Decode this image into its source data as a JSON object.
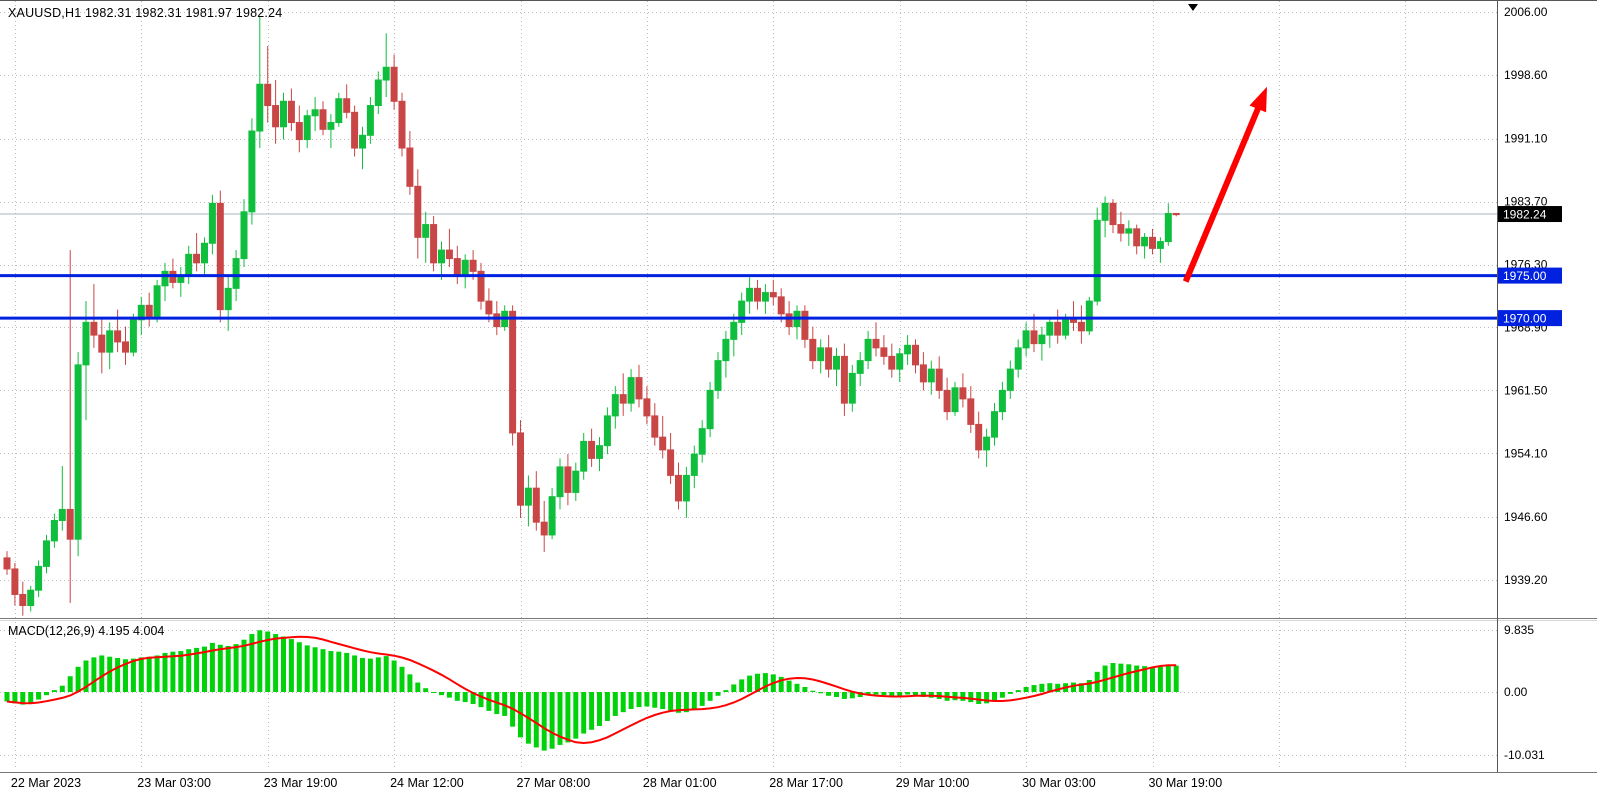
{
  "header": {
    "title": "XAUUSD,H1 1982.31 1982.31 1981.97 1982.24"
  },
  "colors": {
    "background": "#FFFFFF",
    "grid": "#BDBDBD",
    "axis_text": "#000000",
    "bull": "#0FBE3C",
    "bear": "#C84646",
    "macd_hist": "#00D20A",
    "macd_signal": "#FF0000",
    "hline": "#0022E0",
    "hline_tag_bg": "#0022E0",
    "current_tag_bg": "#000000",
    "current_line": "#A8B4C0",
    "arrow": "#FF0000",
    "separator": "#777777"
  },
  "chart_data": {
    "type": "candlestick",
    "symbol": "XAUUSD",
    "timeframe": "H1",
    "ohlc_display": {
      "open": "1982.31",
      "high": "1982.31",
      "low": "1981.97",
      "close": "1982.24"
    },
    "price_axis": {
      "ticks": [
        2006.0,
        1998.6,
        1991.1,
        1983.7,
        1976.3,
        1968.9,
        1961.5,
        1954.1,
        1946.6,
        1939.2
      ],
      "tick_labels": [
        "2006.00",
        "1998.60",
        "1991.10",
        "1983.70",
        "1976.30",
        "1968.90",
        "1961.50",
        "1954.10",
        "1946.60",
        "1939.20"
      ]
    },
    "time_axis": {
      "labels": [
        {
          "text": "22 Mar 2023",
          "index": 1
        },
        {
          "text": "23 Mar 03:00",
          "index": 17
        },
        {
          "text": "23 Mar 19:00",
          "index": 33
        },
        {
          "text": "24 Mar 12:00",
          "index": 49
        },
        {
          "text": "27 Mar 08:00",
          "index": 65
        },
        {
          "text": "28 Mar 01:00",
          "index": 81
        },
        {
          "text": "28 Mar 17:00",
          "index": 97
        },
        {
          "text": "29 Mar 10:00",
          "index": 113
        },
        {
          "text": "30 Mar 03:00",
          "index": 129
        },
        {
          "text": "30 Mar 19:00",
          "index": 145
        }
      ],
      "grid_extra_indices": [
        161,
        177
      ]
    },
    "horizontal_lines": [
      {
        "price": 1975.0,
        "label": "1975.00"
      },
      {
        "price": 1970.0,
        "label": "1970.00"
      }
    ],
    "current_price": {
      "value": 1982.24,
      "label": "1982.24"
    },
    "candles": [
      [
        1941.8,
        1942.6,
        1939.8,
        1940.5
      ],
      [
        1940.5,
        1941.2,
        1936.2,
        1937.5
      ],
      [
        1937.5,
        1939.0,
        1935.0,
        1936.2
      ],
      [
        1936.2,
        1938.5,
        1935.5,
        1938.0
      ],
      [
        1938.0,
        1941.5,
        1937.2,
        1940.8
      ],
      [
        1940.8,
        1944.5,
        1940.0,
        1943.8
      ],
      [
        1943.8,
        1947.0,
        1943.0,
        1946.2
      ],
      [
        1946.2,
        1952.6,
        1945.0,
        1947.5
      ],
      [
        1947.5,
        1978.0,
        1936.5,
        1944.0
      ],
      [
        1944.0,
        1966.0,
        1942.0,
        1964.5
      ],
      [
        1964.5,
        1972.0,
        1958.0,
        1969.5
      ],
      [
        1969.5,
        1974.0,
        1966.5,
        1968.0
      ],
      [
        1968.0,
        1970.0,
        1963.5,
        1966.0
      ],
      [
        1966.0,
        1969.5,
        1964.0,
        1968.5
      ],
      [
        1968.5,
        1971.0,
        1966.0,
        1967.2
      ],
      [
        1967.2,
        1969.0,
        1964.5,
        1966.0
      ],
      [
        1966.0,
        1970.5,
        1965.5,
        1969.8
      ],
      [
        1969.8,
        1972.5,
        1968.0,
        1971.5
      ],
      [
        1971.5,
        1973.0,
        1969.0,
        1970.2
      ],
      [
        1970.2,
        1974.5,
        1969.5,
        1973.8
      ],
      [
        1973.8,
        1976.5,
        1972.0,
        1975.5
      ],
      [
        1975.5,
        1977.0,
        1973.5,
        1974.2
      ],
      [
        1974.2,
        1976.0,
        1972.5,
        1975.0
      ],
      [
        1975.0,
        1978.5,
        1974.0,
        1977.5
      ],
      [
        1977.5,
        1980.0,
        1975.5,
        1976.5
      ],
      [
        1976.5,
        1979.5,
        1975.0,
        1978.8
      ],
      [
        1978.8,
        1984.5,
        1977.5,
        1983.5
      ],
      [
        1983.5,
        1985.0,
        1969.5,
        1971.0
      ],
      [
        1971.0,
        1975.0,
        1968.5,
        1973.5
      ],
      [
        1973.5,
        1978.0,
        1972.0,
        1977.0
      ],
      [
        1977.0,
        1984.0,
        1976.0,
        1982.5
      ],
      [
        1982.5,
        1993.5,
        1981.0,
        1992.0
      ],
      [
        1992.0,
        2005.5,
        1990.0,
        1997.5
      ],
      [
        1997.5,
        2002.0,
        1993.0,
        1995.0
      ],
      [
        1995.0,
        1998.0,
        1990.5,
        1992.5
      ],
      [
        1992.5,
        1996.5,
        1991.0,
        1995.5
      ],
      [
        1995.5,
        1997.0,
        1992.0,
        1993.0
      ],
      [
        1993.0,
        1995.0,
        1989.5,
        1991.0
      ],
      [
        1991.0,
        1994.5,
        1990.0,
        1993.8
      ],
      [
        1993.8,
        1996.0,
        1992.0,
        1994.5
      ],
      [
        1994.5,
        1995.5,
        1991.5,
        1992.2
      ],
      [
        1992.2,
        1994.0,
        1990.0,
        1993.0
      ],
      [
        1993.0,
        1996.5,
        1992.5,
        1995.8
      ],
      [
        1995.8,
        1997.5,
        1993.5,
        1994.2
      ],
      [
        1994.2,
        1995.0,
        1989.0,
        1990.0
      ],
      [
        1990.0,
        1992.5,
        1987.5,
        1991.5
      ],
      [
        1991.5,
        1996.0,
        1990.5,
        1995.0
      ],
      [
        1995.0,
        1999.0,
        1994.0,
        1998.0
      ],
      [
        1998.0,
        2003.5,
        1996.0,
        1999.5
      ],
      [
        1999.5,
        2001.0,
        1994.5,
        1995.5
      ],
      [
        1995.5,
        1996.5,
        1989.0,
        1990.0
      ],
      [
        1990.0,
        1992.0,
        1984.5,
        1985.5
      ],
      [
        1985.5,
        1987.5,
        1977.0,
        1979.5
      ],
      [
        1979.5,
        1982.5,
        1976.5,
        1981.0
      ],
      [
        1981.0,
        1982.0,
        1975.5,
        1976.5
      ],
      [
        1976.5,
        1979.0,
        1974.5,
        1978.0
      ],
      [
        1978.0,
        1980.5,
        1976.0,
        1977.0
      ],
      [
        1977.0,
        1978.5,
        1974.0,
        1975.0
      ],
      [
        1975.0,
        1977.5,
        1973.5,
        1976.8
      ],
      [
        1976.8,
        1978.0,
        1974.5,
        1975.5
      ],
      [
        1975.5,
        1976.5,
        1971.0,
        1972.0
      ],
      [
        1972.0,
        1973.5,
        1969.5,
        1970.5
      ],
      [
        1970.5,
        1972.0,
        1968.0,
        1969.0
      ],
      [
        1969.0,
        1971.5,
        1968.5,
        1970.8
      ],
      [
        1970.8,
        1971.5,
        1955.0,
        1956.5
      ],
      [
        1956.5,
        1958.0,
        1946.5,
        1948.0
      ],
      [
        1948.0,
        1951.5,
        1945.5,
        1950.0
      ],
      [
        1950.0,
        1952.0,
        1945.0,
        1946.0
      ],
      [
        1946.0,
        1948.5,
        1942.5,
        1944.5
      ],
      [
        1944.5,
        1950.0,
        1944.0,
        1949.0
      ],
      [
        1949.0,
        1953.5,
        1947.5,
        1952.5
      ],
      [
        1952.5,
        1954.0,
        1948.0,
        1949.5
      ],
      [
        1949.5,
        1953.0,
        1948.5,
        1952.0
      ],
      [
        1952.0,
        1956.5,
        1951.0,
        1955.5
      ],
      [
        1955.5,
        1957.0,
        1952.5,
        1953.5
      ],
      [
        1953.5,
        1956.0,
        1952.0,
        1955.0
      ],
      [
        1955.0,
        1959.5,
        1954.0,
        1958.5
      ],
      [
        1958.5,
        1962.0,
        1957.0,
        1961.0
      ],
      [
        1961.0,
        1963.5,
        1958.5,
        1960.0
      ],
      [
        1960.0,
        1964.0,
        1959.0,
        1963.0
      ],
      [
        1963.0,
        1964.5,
        1959.5,
        1960.5
      ],
      [
        1960.5,
        1962.0,
        1957.5,
        1958.5
      ],
      [
        1958.5,
        1960.0,
        1955.0,
        1956.0
      ],
      [
        1956.0,
        1958.5,
        1953.5,
        1954.5
      ],
      [
        1954.5,
        1956.5,
        1950.5,
        1951.5
      ],
      [
        1951.5,
        1953.0,
        1947.5,
        1948.5
      ],
      [
        1948.5,
        1952.5,
        1946.5,
        1951.5
      ],
      [
        1951.5,
        1955.0,
        1950.0,
        1954.0
      ],
      [
        1954.0,
        1958.0,
        1953.0,
        1957.0
      ],
      [
        1957.0,
        1962.5,
        1956.0,
        1961.5
      ],
      [
        1961.5,
        1966.0,
        1960.5,
        1965.0
      ],
      [
        1965.0,
        1968.5,
        1963.0,
        1967.5
      ],
      [
        1967.5,
        1970.5,
        1965.5,
        1969.5
      ],
      [
        1969.5,
        1973.0,
        1968.0,
        1972.0
      ],
      [
        1972.0,
        1974.8,
        1970.5,
        1973.5
      ],
      [
        1973.5,
        1974.5,
        1971.0,
        1972.0
      ],
      [
        1972.0,
        1974.0,
        1970.5,
        1973.0
      ],
      [
        1973.0,
        1974.5,
        1971.5,
        1972.5
      ],
      [
        1972.5,
        1973.5,
        1969.5,
        1970.5
      ],
      [
        1970.5,
        1972.0,
        1968.0,
        1969.0
      ],
      [
        1969.0,
        1971.5,
        1967.5,
        1970.8
      ],
      [
        1970.8,
        1971.5,
        1966.5,
        1967.5
      ],
      [
        1967.5,
        1969.0,
        1964.0,
        1965.0
      ],
      [
        1965.0,
        1967.5,
        1963.5,
        1966.5
      ],
      [
        1966.5,
        1968.0,
        1963.0,
        1964.0
      ],
      [
        1964.0,
        1966.5,
        1962.0,
        1965.5
      ],
      [
        1965.5,
        1967.0,
        1958.5,
        1960.0
      ],
      [
        1960.0,
        1964.5,
        1959.0,
        1963.5
      ],
      [
        1963.5,
        1966.0,
        1962.0,
        1965.0
      ],
      [
        1965.0,
        1968.5,
        1964.0,
        1967.5
      ],
      [
        1967.5,
        1969.5,
        1965.5,
        1966.5
      ],
      [
        1966.5,
        1968.0,
        1964.5,
        1965.5
      ],
      [
        1965.5,
        1967.0,
        1963.0,
        1964.0
      ],
      [
        1964.0,
        1966.5,
        1962.5,
        1965.8
      ],
      [
        1965.8,
        1968.0,
        1964.5,
        1966.8
      ],
      [
        1966.8,
        1967.5,
        1963.5,
        1964.5
      ],
      [
        1964.5,
        1966.0,
        1961.5,
        1962.5
      ],
      [
        1962.5,
        1965.0,
        1961.0,
        1964.0
      ],
      [
        1964.0,
        1965.5,
        1960.5,
        1961.5
      ],
      [
        1961.5,
        1963.0,
        1958.0,
        1959.0
      ],
      [
        1959.0,
        1962.5,
        1958.5,
        1961.8
      ],
      [
        1961.8,
        1963.5,
        1959.5,
        1960.5
      ],
      [
        1960.5,
        1962.0,
        1956.5,
        1957.5
      ],
      [
        1957.5,
        1959.0,
        1953.5,
        1954.5
      ],
      [
        1954.5,
        1957.0,
        1952.5,
        1956.0
      ],
      [
        1956.0,
        1960.0,
        1955.0,
        1959.0
      ],
      [
        1959.0,
        1962.5,
        1958.0,
        1961.5
      ],
      [
        1961.5,
        1965.0,
        1960.5,
        1964.0
      ],
      [
        1964.0,
        1967.5,
        1963.0,
        1966.5
      ],
      [
        1966.5,
        1969.5,
        1965.5,
        1968.5
      ],
      [
        1968.5,
        1970.5,
        1966.0,
        1967.0
      ],
      [
        1967.0,
        1969.0,
        1965.0,
        1968.0
      ],
      [
        1968.0,
        1970.0,
        1966.5,
        1969.5
      ],
      [
        1969.5,
        1971.0,
        1967.0,
        1968.0
      ],
      [
        1968.0,
        1970.5,
        1967.5,
        1970.0
      ],
      [
        1970.0,
        1972.0,
        1968.5,
        1969.5
      ],
      [
        1969.5,
        1971.5,
        1967.0,
        1968.5
      ],
      [
        1968.5,
        1972.5,
        1968.0,
        1972.0
      ],
      [
        1972.0,
        1983.0,
        1971.5,
        1981.5
      ],
      [
        1981.5,
        1984.3,
        1979.5,
        1983.5
      ],
      [
        1983.5,
        1984.0,
        1980.0,
        1981.0
      ],
      [
        1981.0,
        1982.5,
        1979.0,
        1980.0
      ],
      [
        1980.0,
        1981.5,
        1978.5,
        1980.5
      ],
      [
        1980.5,
        1981.0,
        1977.5,
        1978.5
      ],
      [
        1978.5,
        1980.0,
        1977.0,
        1979.5
      ],
      [
        1979.5,
        1980.5,
        1977.5,
        1978.2
      ],
      [
        1978.2,
        1979.5,
        1976.5,
        1979.0
      ],
      [
        1979.0,
        1983.5,
        1978.5,
        1982.3
      ],
      [
        1982.31,
        1982.31,
        1981.97,
        1982.24
      ]
    ],
    "indicator": {
      "name": "MACD",
      "params": "12,26,9",
      "label": "MACD(12,26,9) 4.195 4.004",
      "values": [
        4.195,
        4.004
      ],
      "axis_ticks": [
        9.835,
        0.0,
        -10.031
      ],
      "axis_tick_labels": [
        "9.835",
        "0.00",
        "-10.031"
      ],
      "signal_smoothing": 9,
      "histogram": [
        -1.5,
        -1.8,
        -2.0,
        -1.8,
        -1.2,
        -0.5,
        0.3,
        1.0,
        2.5,
        4.0,
        5.0,
        5.5,
        5.8,
        5.6,
        5.4,
        5.2,
        5.3,
        5.5,
        5.6,
        5.8,
        6.2,
        6.4,
        6.5,
        6.8,
        7.0,
        7.2,
        7.8,
        7.5,
        7.3,
        7.6,
        8.3,
        9.2,
        9.8,
        9.6,
        9.2,
        8.8,
        8.4,
        7.9,
        7.4,
        7.1,
        6.8,
        6.5,
        6.4,
        6.2,
        5.8,
        5.4,
        5.3,
        5.5,
        5.7,
        5.0,
        4.0,
        2.8,
        1.5,
        0.6,
        0.0,
        -0.5,
        -0.9,
        -1.4,
        -1.6,
        -1.9,
        -2.4,
        -3.0,
        -3.5,
        -3.8,
        -5.5,
        -7.2,
        -8.2,
        -8.8,
        -9.3,
        -9.0,
        -8.4,
        -8.0,
        -7.4,
        -6.6,
        -6.0,
        -5.4,
        -4.6,
        -3.8,
        -3.2,
        -2.7,
        -2.4,
        -2.3,
        -2.5,
        -2.7,
        -3.0,
        -3.3,
        -3.2,
        -2.8,
        -2.2,
        -1.4,
        -0.6,
        0.3,
        1.2,
        2.0,
        2.6,
        2.9,
        3.0,
        2.8,
        2.4,
        1.8,
        1.3,
        0.8,
        0.2,
        -0.2,
        -0.6,
        -0.8,
        -1.1,
        -1.0,
        -0.8,
        -0.5,
        -0.4,
        -0.5,
        -0.7,
        -0.6,
        -0.4,
        -0.5,
        -0.8,
        -0.9,
        -1.1,
        -1.4,
        -1.3,
        -1.4,
        -1.6,
        -1.9,
        -1.8,
        -1.4,
        -0.9,
        -0.3,
        0.3,
        0.8,
        1.1,
        1.3,
        1.4,
        1.3,
        1.4,
        1.5,
        1.4,
        1.9,
        3.2,
        4.2,
        4.6,
        4.5,
        4.4,
        4.2,
        4.1,
        4.0,
        4.0,
        4.3,
        4.195
      ]
    },
    "annotations": {
      "arrow": {
        "from_index": 149.2,
        "from_price": 1974.3,
        "to_index": 159.5,
        "to_price": 1997.2
      }
    }
  }
}
